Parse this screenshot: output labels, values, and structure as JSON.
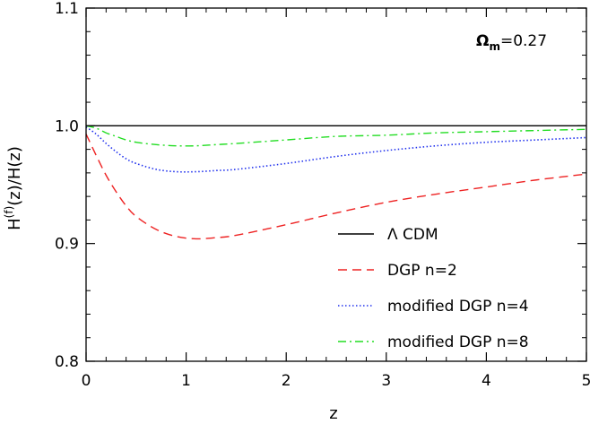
{
  "chart_data": {
    "type": "line",
    "title": "",
    "xlabel": "z",
    "ylabel_base": "H",
    "ylabel_sup": "(f)",
    "ylabel_rest": "(z)/H(z)",
    "xlim": [
      0,
      5
    ],
    "ylim": [
      0.8,
      1.1
    ],
    "xticks": [
      0,
      1,
      2,
      3,
      4,
      5
    ],
    "xtick_labels": [
      "0",
      "1",
      "2",
      "3",
      "4",
      "5"
    ],
    "yticks": [
      0.8,
      0.9,
      1.0,
      1.1
    ],
    "ytick_labels": [
      "0.8",
      "0.9",
      "1.0",
      "1.1"
    ],
    "grid": false,
    "legend_position": "bottom-right",
    "annotation": {
      "symbol": "Ω",
      "subscript": "m",
      "text": "=0.27"
    },
    "series": [
      {
        "name": "Λ CDM",
        "color": "#000000",
        "dash": "solid",
        "x": [
          0,
          0.5,
          1,
          1.5,
          2,
          2.5,
          3,
          3.5,
          4,
          4.5,
          5
        ],
        "y": [
          1.0,
          1.0,
          1.0,
          1.0,
          1.0,
          1.0,
          1.0,
          1.0,
          1.0,
          1.0,
          1.0
        ]
      },
      {
        "name": "DGP  n=2",
        "color": "#ee2222",
        "dash": "dashed",
        "x": [
          0,
          0.1,
          0.2,
          0.3,
          0.4,
          0.5,
          0.7,
          0.9,
          1.1,
          1.3,
          1.5,
          2,
          2.5,
          3,
          3.5,
          4,
          4.5,
          5
        ],
        "y": [
          0.993,
          0.975,
          0.958,
          0.944,
          0.932,
          0.923,
          0.912,
          0.906,
          0.904,
          0.905,
          0.907,
          0.916,
          0.926,
          0.935,
          0.942,
          0.948,
          0.954,
          0.959
        ]
      },
      {
        "name": "modified DGP  n=4",
        "color": "#2233ee",
        "dash": "dotted",
        "x": [
          0,
          0.1,
          0.2,
          0.3,
          0.4,
          0.5,
          0.7,
          0.9,
          1.1,
          1.3,
          1.5,
          2,
          2.5,
          3,
          3.5,
          4,
          4.5,
          5
        ],
        "y": [
          0.999,
          0.993,
          0.985,
          0.978,
          0.972,
          0.968,
          0.963,
          0.961,
          0.961,
          0.962,
          0.963,
          0.968,
          0.974,
          0.979,
          0.983,
          0.986,
          0.988,
          0.99
        ]
      },
      {
        "name": "modified DGP  n=8",
        "color": "#22dd22",
        "dash": "dashdot",
        "x": [
          0,
          0.1,
          0.2,
          0.3,
          0.4,
          0.5,
          0.7,
          0.9,
          1.1,
          1.3,
          1.5,
          2,
          2.5,
          3,
          3.5,
          4,
          4.5,
          5
        ],
        "y": [
          1.0,
          0.998,
          0.994,
          0.991,
          0.988,
          0.986,
          0.984,
          0.983,
          0.983,
          0.984,
          0.985,
          0.988,
          0.991,
          0.992,
          0.994,
          0.995,
          0.996,
          0.997
        ]
      }
    ]
  }
}
